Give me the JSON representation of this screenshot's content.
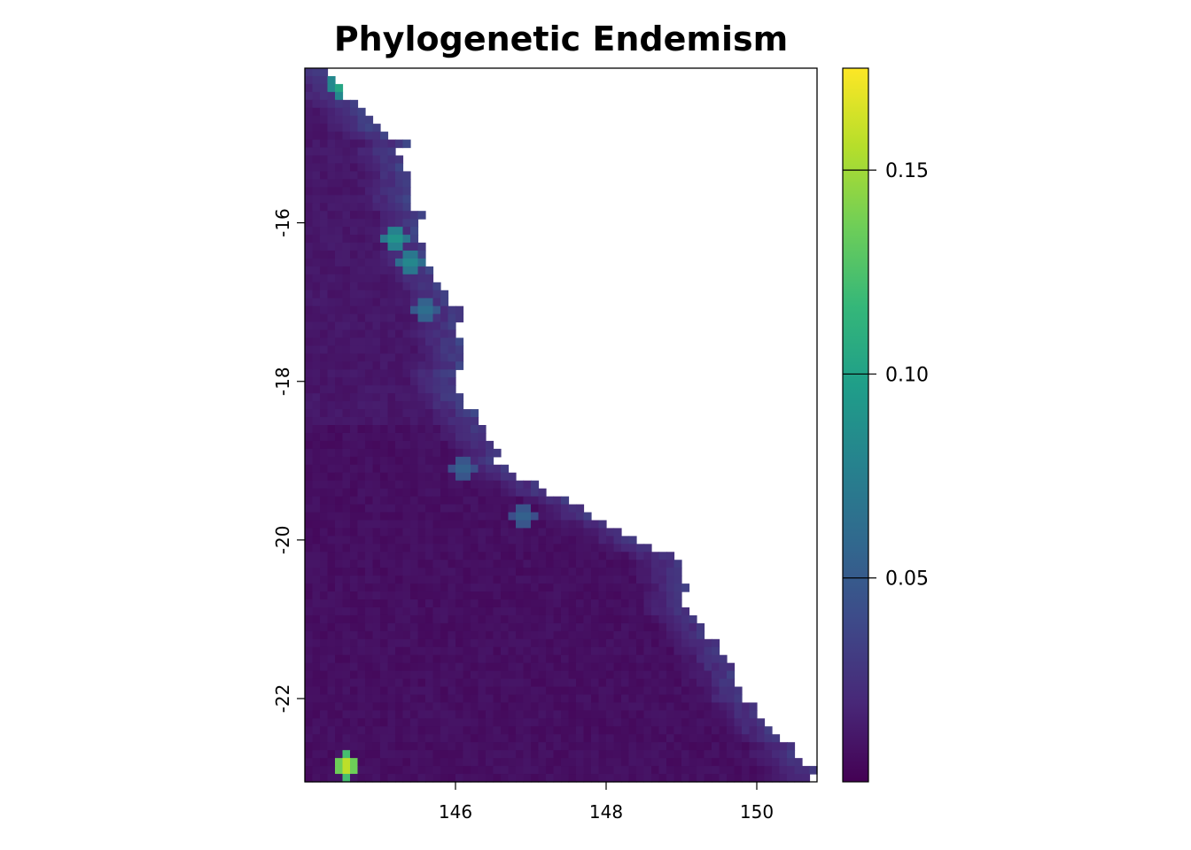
{
  "title": "Phylogenetic Endemism",
  "chart_data": {
    "type": "heatmap",
    "title": "Phylogenetic Endemism",
    "x_ticks": [
      {
        "value": 146,
        "label": "146"
      },
      {
        "value": 148,
        "label": "148"
      },
      {
        "value": 150,
        "label": "150"
      }
    ],
    "y_ticks": [
      {
        "value": -16,
        "label": "-16"
      },
      {
        "value": -18,
        "label": "-18"
      },
      {
        "value": -20,
        "label": "-20"
      },
      {
        "value": -22,
        "label": "-22"
      }
    ],
    "xlim": [
      144.0,
      150.8
    ],
    "ylim": [
      -23.05,
      -14.05
    ],
    "legend": {
      "placement": "right",
      "range": [
        0.0,
        0.175
      ],
      "ticks": [
        {
          "value": 0.05,
          "label": "0.05"
        },
        {
          "value": 0.1,
          "label": "0.10"
        },
        {
          "value": 0.15,
          "label": "0.15"
        }
      ],
      "colormap": "viridis",
      "colors": [
        "#440154",
        "#482878",
        "#3e4989",
        "#31688e",
        "#26828e",
        "#1f9e89",
        "#35b779",
        "#6ece58",
        "#b5de2b",
        "#fde725"
      ]
    },
    "cell_size_degrees": 0.1,
    "coast_east_edge": [
      [
        -14.05,
        144.3
      ],
      [
        -14.5,
        144.6
      ],
      [
        -15.0,
        145.3
      ],
      [
        -15.5,
        145.3
      ],
      [
        -16.0,
        145.6
      ],
      [
        -16.5,
        145.6
      ],
      [
        -17.0,
        146.0
      ],
      [
        -17.5,
        146.1
      ],
      [
        -18.0,
        146.0
      ],
      [
        -18.5,
        146.3
      ],
      [
        -19.0,
        146.6
      ],
      [
        -19.3,
        147.0
      ],
      [
        -19.5,
        147.5
      ],
      [
        -19.8,
        148.0
      ],
      [
        -20.0,
        148.4
      ],
      [
        -20.3,
        149.0
      ],
      [
        -20.8,
        149.1
      ],
      [
        -21.0,
        149.2
      ],
      [
        -21.5,
        149.6
      ],
      [
        -22.0,
        149.8
      ],
      [
        -22.4,
        150.2
      ],
      [
        -22.6,
        150.5
      ],
      [
        -23.05,
        150.8
      ]
    ],
    "hotspots": [
      {
        "lon": 144.5,
        "lat": -14.25,
        "value": 0.12
      },
      {
        "lon": 145.2,
        "lat": -16.2,
        "value": 0.1
      },
      {
        "lon": 145.4,
        "lat": -16.5,
        "value": 0.09
      },
      {
        "lon": 145.6,
        "lat": -17.1,
        "value": 0.07
      },
      {
        "lon": 146.1,
        "lat": -19.1,
        "value": 0.06
      },
      {
        "lon": 146.9,
        "lat": -19.7,
        "value": 0.06
      },
      {
        "lon": 144.55,
        "lat": -22.85,
        "value": 0.175
      }
    ]
  }
}
